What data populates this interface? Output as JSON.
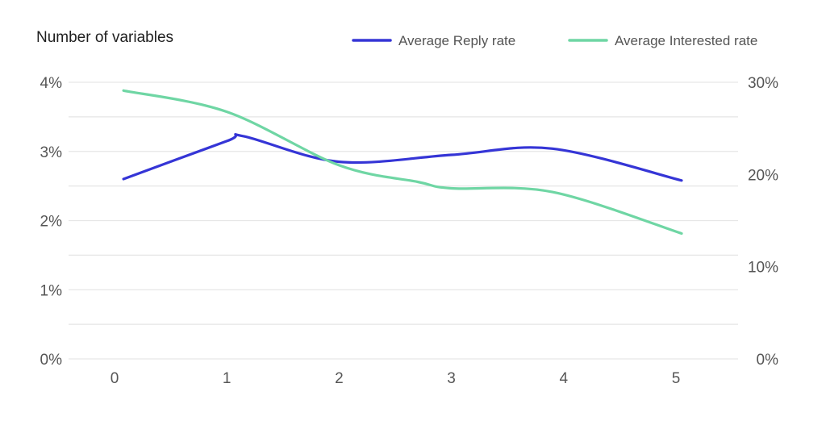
{
  "chart_data": {
    "type": "line",
    "title": "Number of variables",
    "xlabel": "",
    "ylabel_left": "",
    "ylabel_right": "",
    "x": [
      0,
      1,
      2,
      3,
      4,
      5
    ],
    "x_tick_labels": [
      "0",
      "1",
      "2",
      "3",
      "4",
      "5"
    ],
    "y_left_ticks": [
      "4%",
      "3%",
      "2%",
      "1%",
      "0%"
    ],
    "y_left_lim": [
      0,
      4
    ],
    "y_right_ticks": [
      "30%",
      "20%",
      "10%",
      "0%"
    ],
    "y_right_lim": [
      0,
      30
    ],
    "grid": true,
    "legend_position": "top-right",
    "series": [
      {
        "name": "Average Reply rate",
        "axis": "left",
        "color": "#3535d6",
        "x": [
          0.08,
          1.0,
          1.15,
          2.0,
          3.0,
          3.9,
          5.05
        ],
        "y": [
          2.6,
          3.15,
          3.22,
          2.85,
          2.95,
          3.04,
          2.58
        ]
      },
      {
        "name": "Average Interested rate",
        "axis": "right",
        "color": "#6fd6a4",
        "x": [
          0.08,
          1.0,
          2.0,
          2.7,
          3.0,
          3.9,
          5.05
        ],
        "y": [
          29.1,
          26.8,
          21.0,
          19.2,
          18.5,
          18.1,
          13.6
        ]
      }
    ]
  }
}
